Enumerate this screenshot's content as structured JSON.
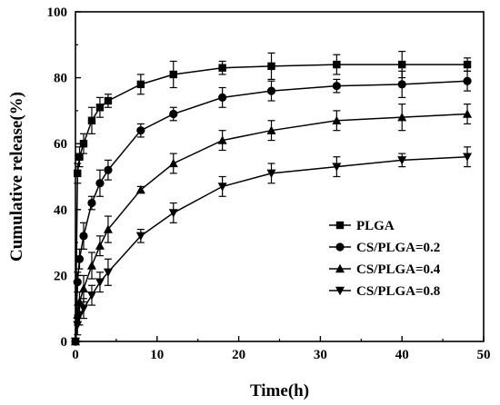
{
  "chart_data": {
    "type": "line",
    "title": "",
    "xlabel": "Time(h)",
    "ylabel": "Cumulative release(%)",
    "xlim": [
      0,
      50
    ],
    "ylim": [
      0,
      100
    ],
    "xticks": [
      0,
      10,
      20,
      30,
      40,
      50
    ],
    "yticks": [
      0,
      20,
      40,
      60,
      80,
      100
    ],
    "grid": false,
    "legend_position": "center-right",
    "x": [
      0,
      0.25,
      0.5,
      1,
      2,
      3,
      4,
      8,
      12,
      18,
      24,
      32,
      40,
      48
    ],
    "series": [
      {
        "name": "PLGA",
        "marker": "square",
        "values": [
          0,
          51,
          56,
          60,
          67,
          71,
          73,
          78,
          81,
          83,
          83.5,
          84,
          84,
          84
        ],
        "errors": [
          0,
          3,
          3,
          3,
          4,
          3,
          2,
          3,
          4,
          2,
          4,
          3,
          4,
          2
        ]
      },
      {
        "name": "CS/PLGA=0.2",
        "marker": "circle",
        "values": [
          0,
          18,
          25,
          32,
          42,
          48,
          52,
          64,
          69,
          74,
          76,
          77.5,
          78,
          79
        ],
        "errors": [
          0,
          3,
          3,
          4,
          2,
          4,
          3,
          2,
          2,
          3,
          3,
          2,
          4,
          3
        ]
      },
      {
        "name": "CS/PLGA=0.4",
        "marker": "triangle-up",
        "values": [
          0,
          8,
          12,
          16,
          23,
          29,
          34,
          46,
          54,
          61,
          64,
          67,
          68,
          69
        ],
        "errors": [
          0,
          3,
          3,
          4,
          4,
          3,
          4,
          1,
          3,
          3,
          3,
          3,
          4,
          3
        ]
      },
      {
        "name": "CS/PLGA=0.8",
        "marker": "triangle-down",
        "values": [
          0,
          5,
          8,
          10,
          14,
          18,
          21,
          32,
          39,
          47,
          51,
          53,
          55,
          56
        ],
        "errors": [
          0,
          3,
          3,
          3,
          3,
          3,
          4,
          2,
          3,
          3,
          3,
          3,
          2,
          3
        ]
      }
    ]
  }
}
